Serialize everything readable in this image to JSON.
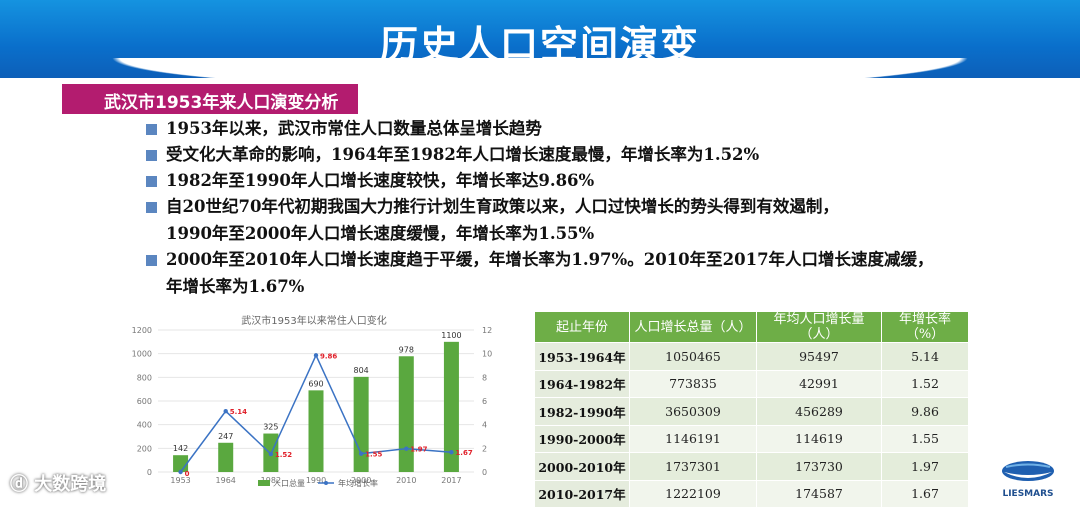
{
  "header": {
    "title": "历史人口空间演变"
  },
  "section": {
    "label": "武汉市1953年来人口演变分析"
  },
  "bullets": [
    "1953年以来，武汉市常住人口数量总体呈增长趋势",
    "受文化大革命的影响，1964年至1982年人口增长速度最慢，年增长率为1.52%",
    "1982年至1990年人口增长速度较快，年增长率达9.86%",
    "自20世纪70年代初期我国大力推行计划生育政策以来，人口过快增长的势头得到有效遏制，",
    "1990年至2000年人口增长速度缓慢，年增长率为1.55%",
    "2000年至2010年人口增长速度趋于平缓，年增长率为1.97%。2010年至2017年人口增长速度减缓，",
    "年增长率为1.67%"
  ],
  "chart_data": {
    "type": "bar",
    "title": "武汉市1953年以来常住人口变化",
    "categories": [
      "1953",
      "1964",
      "1982",
      "1990",
      "2000",
      "2010",
      "2017"
    ],
    "series": [
      {
        "name": "人口总量",
        "kind": "bar",
        "axis": "left",
        "values": [
          142,
          247,
          325,
          690,
          804,
          978,
          1100
        ],
        "color": "#5aa83f"
      },
      {
        "name": "年均增长率",
        "kind": "line",
        "axis": "right",
        "values": [
          0,
          5.14,
          1.52,
          9.86,
          1.55,
          1.97,
          1.67
        ],
        "color": "#3b73c4"
      }
    ],
    "rate_labels": [
      "0",
      "5.14",
      "1.52",
      "9.86",
      "1.55",
      "1.97",
      "1.67"
    ],
    "ylim_left": [
      0,
      1200
    ],
    "yticks_left": [
      "0",
      "200",
      "400",
      "600",
      "800",
      "1000",
      "1200"
    ],
    "ylim_right": [
      0,
      12
    ],
    "yticks_right": [
      "0",
      "2",
      "4",
      "6",
      "8",
      "10",
      "12"
    ],
    "legend_position": "bottom"
  },
  "table": {
    "headers": [
      "起止年份",
      "人口增长总量（人）",
      "年均人口增长量（人）",
      "年增长率（%）"
    ],
    "rows": [
      [
        "1953-1964年",
        "1050465",
        "95497",
        "5.14"
      ],
      [
        "1964-1982年",
        "773835",
        "42991",
        "1.52"
      ],
      [
        "1982-1990年",
        "3650309",
        "456289",
        "9.86"
      ],
      [
        "1990-2000年",
        "1146191",
        "114619",
        "1.55"
      ],
      [
        "2000-2010年",
        "1737301",
        "173730",
        "1.97"
      ],
      [
        "2010-2017年",
        "1222109",
        "174587",
        "1.67"
      ]
    ]
  },
  "watermark": {
    "text": "大数跨境"
  },
  "logo": {
    "text": "LIESMARS"
  }
}
